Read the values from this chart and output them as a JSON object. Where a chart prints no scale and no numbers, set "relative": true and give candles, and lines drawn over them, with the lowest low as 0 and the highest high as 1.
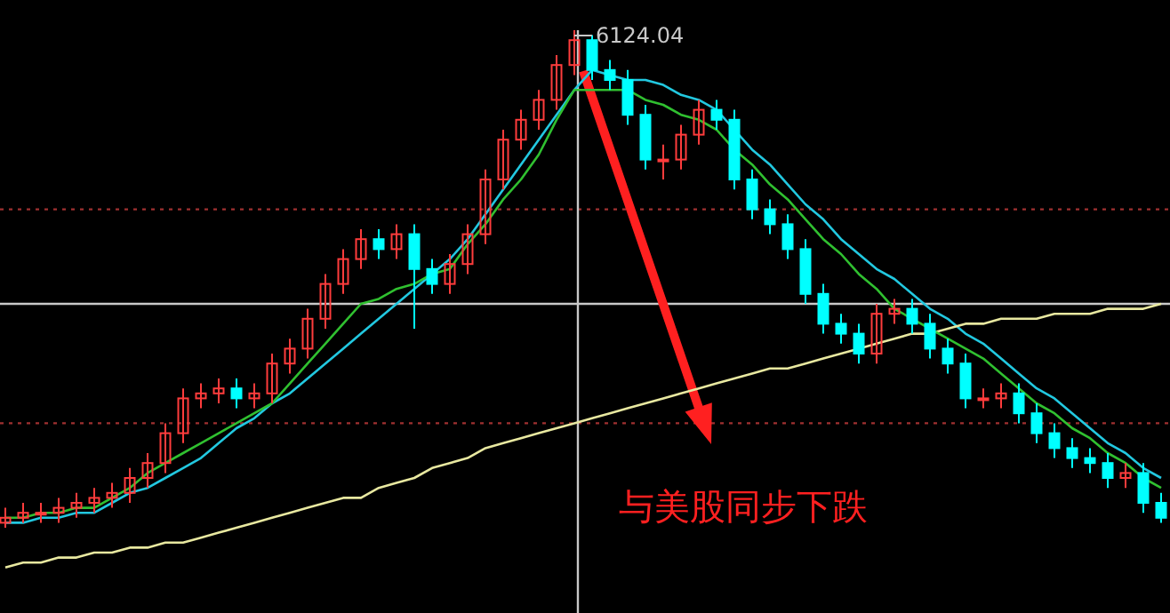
{
  "chart_data": {
    "type": "candlestick",
    "relative": true,
    "categories": [
      null,
      null,
      null,
      null,
      null,
      null,
      null,
      null,
      null,
      null,
      null,
      null,
      null,
      null,
      null,
      null,
      null,
      null,
      null,
      null,
      null,
      null,
      null,
      null,
      null,
      null,
      null,
      null,
      null,
      null,
      null,
      null,
      null,
      null,
      null,
      null,
      null,
      null,
      null,
      null,
      null,
      null,
      null,
      null,
      null,
      null,
      null,
      null,
      null,
      null,
      null,
      null,
      null,
      null,
      null,
      null,
      null,
      null,
      null,
      null,
      null,
      null,
      null,
      null,
      null,
      null
    ],
    "ohlc": [
      [
        0.01,
        0.04,
        0,
        0.02
      ],
      [
        0.02,
        0.05,
        0.01,
        0.03
      ],
      [
        0.03,
        0.05,
        0.01,
        0.03
      ],
      [
        0.03,
        0.06,
        0.01,
        0.04
      ],
      [
        0.04,
        0.07,
        0.02,
        0.05
      ],
      [
        0.05,
        0.08,
        0.03,
        0.06
      ],
      [
        0.06,
        0.09,
        0.04,
        0.07
      ],
      [
        0.07,
        0.12,
        0.05,
        0.1
      ],
      [
        0.1,
        0.15,
        0.08,
        0.13
      ],
      [
        0.13,
        0.21,
        0.11,
        0.19
      ],
      [
        0.19,
        0.28,
        0.17,
        0.26
      ],
      [
        0.26,
        0.29,
        0.24,
        0.27
      ],
      [
        0.27,
        0.3,
        0.25,
        0.28
      ],
      [
        0.28,
        0.3,
        0.24,
        0.26
      ],
      [
        0.26,
        0.29,
        0.24,
        0.27
      ],
      [
        0.27,
        0.35,
        0.25,
        0.33
      ],
      [
        0.33,
        0.38,
        0.31,
        0.36
      ],
      [
        0.36,
        0.44,
        0.34,
        0.42
      ],
      [
        0.42,
        0.51,
        0.4,
        0.49
      ],
      [
        0.49,
        0.56,
        0.47,
        0.54
      ],
      [
        0.54,
        0.6,
        0.52,
        0.58
      ],
      [
        0.58,
        0.6,
        0.54,
        0.56
      ],
      [
        0.56,
        0.61,
        0.54,
        0.59
      ],
      [
        0.59,
        0.61,
        0.4,
        0.52
      ],
      [
        0.52,
        0.54,
        0.47,
        0.49
      ],
      [
        0.49,
        0.55,
        0.47,
        0.53
      ],
      [
        0.53,
        0.61,
        0.51,
        0.59
      ],
      [
        0.59,
        0.72,
        0.57,
        0.7
      ],
      [
        0.7,
        0.8,
        0.68,
        0.78
      ],
      [
        0.78,
        0.84,
        0.76,
        0.82
      ],
      [
        0.82,
        0.88,
        0.8,
        0.86
      ],
      [
        0.86,
        0.95,
        0.84,
        0.93
      ],
      [
        0.93,
        1,
        0.91,
        0.98
      ],
      [
        0.98,
        0.99,
        0.9,
        0.92
      ],
      [
        0.92,
        0.94,
        0.88,
        0.9
      ],
      [
        0.9,
        0.92,
        0.81,
        0.83
      ],
      [
        0.83,
        0.85,
        0.72,
        0.74
      ],
      [
        0.74,
        0.77,
        0.7,
        0.74
      ],
      [
        0.74,
        0.81,
        0.72,
        0.79
      ],
      [
        0.79,
        0.86,
        0.77,
        0.84
      ],
      [
        0.84,
        0.86,
        0.8,
        0.82
      ],
      [
        0.82,
        0.84,
        0.68,
        0.7
      ],
      [
        0.7,
        0.72,
        0.62,
        0.64
      ],
      [
        0.64,
        0.66,
        0.59,
        0.61
      ],
      [
        0.61,
        0.63,
        0.54,
        0.56
      ],
      [
        0.56,
        0.58,
        0.45,
        0.47
      ],
      [
        0.47,
        0.49,
        0.39,
        0.41
      ],
      [
        0.41,
        0.43,
        0.37,
        0.39
      ],
      [
        0.39,
        0.41,
        0.33,
        0.35
      ],
      [
        0.35,
        0.45,
        0.33,
        0.43
      ],
      [
        0.43,
        0.46,
        0.41,
        0.44
      ],
      [
        0.44,
        0.46,
        0.39,
        0.41
      ],
      [
        0.41,
        0.43,
        0.34,
        0.36
      ],
      [
        0.36,
        0.38,
        0.31,
        0.33
      ],
      [
        0.33,
        0.35,
        0.24,
        0.26
      ],
      [
        0.26,
        0.28,
        0.24,
        0.26
      ],
      [
        0.26,
        0.29,
        0.24,
        0.27
      ],
      [
        0.27,
        0.29,
        0.21,
        0.23
      ],
      [
        0.23,
        0.25,
        0.17,
        0.19
      ],
      [
        0.19,
        0.21,
        0.14,
        0.16
      ],
      [
        0.16,
        0.18,
        0.12,
        0.14
      ],
      [
        0.14,
        0.16,
        0.11,
        0.13
      ],
      [
        0.13,
        0.15,
        0.08,
        0.1
      ],
      [
        0.1,
        0.13,
        0.08,
        0.11
      ],
      [
        0.11,
        0.13,
        0.03,
        0.05
      ],
      [
        0.05,
        0.07,
        0.01,
        0.02
      ]
    ],
    "colors": [
      "#ff3c3c",
      "#ff3c3c",
      "#ff3c3c",
      "#ff3c3c",
      "#ff3c3c",
      "#ff3c3c",
      "#ff3c3c",
      "#ff3c3c",
      "#ff3c3c",
      "#ff3c3c",
      "#ff3c3c",
      "#ff3c3c",
      "#ff3c3c",
      "#00ffff",
      "#ff3c3c",
      "#ff3c3c",
      "#ff3c3c",
      "#ff3c3c",
      "#ff3c3c",
      "#ff3c3c",
      "#ff3c3c",
      "#00ffff",
      "#ff3c3c",
      "#00ffff",
      "#00ffff",
      "#ff3c3c",
      "#ff3c3c",
      "#ff3c3c",
      "#ff3c3c",
      "#ff3c3c",
      "#ff3c3c",
      "#ff3c3c",
      "#ff3c3c",
      "#00ffff",
      "#00ffff",
      "#00ffff",
      "#00ffff",
      "#ff3c3c",
      "#ff3c3c",
      "#ff3c3c",
      "#00ffff",
      "#00ffff",
      "#00ffff",
      "#00ffff",
      "#00ffff",
      "#00ffff",
      "#00ffff",
      "#00ffff",
      "#00ffff",
      "#ff3c3c",
      "#ff3c3c",
      "#00ffff",
      "#00ffff",
      "#00ffff",
      "#00ffff",
      "#ff3c3c",
      "#ff3c3c",
      "#00ffff",
      "#00ffff",
      "#00ffff",
      "#00ffff",
      "#00ffff",
      "#00ffff",
      "#ff3c3c",
      "#00ffff",
      "#00ffff"
    ],
    "series": [
      {
        "type": "line",
        "color": "#22c8e0",
        "values": [
          0.01,
          0.01,
          0.02,
          0.02,
          0.03,
          0.03,
          0.05,
          0.07,
          0.08,
          0.1,
          0.12,
          0.14,
          0.17,
          0.2,
          0.22,
          0.25,
          0.27,
          0.3,
          0.33,
          0.36,
          0.39,
          0.42,
          0.45,
          0.48,
          0.51,
          0.54,
          0.58,
          0.63,
          0.68,
          0.73,
          0.78,
          0.83,
          0.88,
          0.92,
          0.91,
          0.9,
          0.9,
          0.89,
          0.87,
          0.86,
          0.84,
          0.8,
          0.76,
          0.73,
          0.69,
          0.65,
          0.62,
          0.58,
          0.55,
          0.52,
          0.5,
          0.47,
          0.44,
          0.42,
          0.39,
          0.37,
          0.34,
          0.31,
          0.28,
          0.26,
          0.23,
          0.2,
          0.17,
          0.15,
          0.12,
          0.1
        ]
      },
      {
        "type": "line",
        "color": "#e8e8a0",
        "values": [
          -0.08,
          -0.07,
          -0.07,
          -0.06,
          -0.06,
          -0.05,
          -0.05,
          -0.04,
          -0.04,
          -0.03,
          -0.03,
          -0.02,
          -0.01,
          0,
          0.01,
          0.02,
          0.03,
          0.04,
          0.05,
          0.06,
          0.06,
          0.08,
          0.09,
          0.1,
          0.12,
          0.13,
          0.14,
          0.16,
          0.17,
          0.18,
          0.19,
          0.2,
          0.21,
          0.22,
          0.23,
          0.24,
          0.25,
          0.26,
          0.27,
          0.28,
          0.29,
          0.3,
          0.31,
          0.32,
          0.32,
          0.33,
          0.34,
          0.35,
          0.36,
          0.37,
          0.38,
          0.39,
          0.39,
          0.4,
          0.41,
          0.41,
          0.42,
          0.42,
          0.42,
          0.43,
          0.43,
          0.43,
          0.44,
          0.44,
          0.44,
          0.45
        ]
      },
      {
        "type": "line",
        "color": "#30c030",
        "values": [
          0.02,
          0.02,
          0.03,
          0.03,
          0.04,
          0.04,
          0.06,
          0.08,
          0.11,
          0.13,
          0.15,
          0.17,
          0.19,
          0.21,
          0.23,
          0.25,
          0.29,
          0.33,
          0.37,
          0.41,
          0.45,
          0.46,
          0.48,
          0.49,
          0.51,
          0.52,
          0.57,
          0.61,
          0.66,
          0.7,
          0.75,
          0.82,
          0.88,
          0.88,
          0.88,
          0.88,
          0.86,
          0.85,
          0.83,
          0.82,
          0.8,
          0.76,
          0.73,
          0.69,
          0.66,
          0.62,
          0.58,
          0.55,
          0.51,
          0.48,
          0.44,
          0.42,
          0.4,
          0.38,
          0.36,
          0.34,
          0.31,
          0.28,
          0.25,
          0.23,
          0.2,
          0.18,
          0.15,
          0.13,
          0.1,
          0.08
        ]
      }
    ],
    "ref_lines": [
      {
        "axis": "y",
        "value": 0.45,
        "color": "#c8c8c8",
        "line_style": "solid"
      },
      {
        "axis": "y",
        "value": 0.64,
        "color": "#a03030",
        "line_style": "dotted"
      },
      {
        "axis": "y",
        "value": 0.21,
        "color": "#a03030",
        "line_style": "dotted"
      }
    ],
    "annotations": [
      "6124.04",
      "与美股同步下跌"
    ]
  }
}
